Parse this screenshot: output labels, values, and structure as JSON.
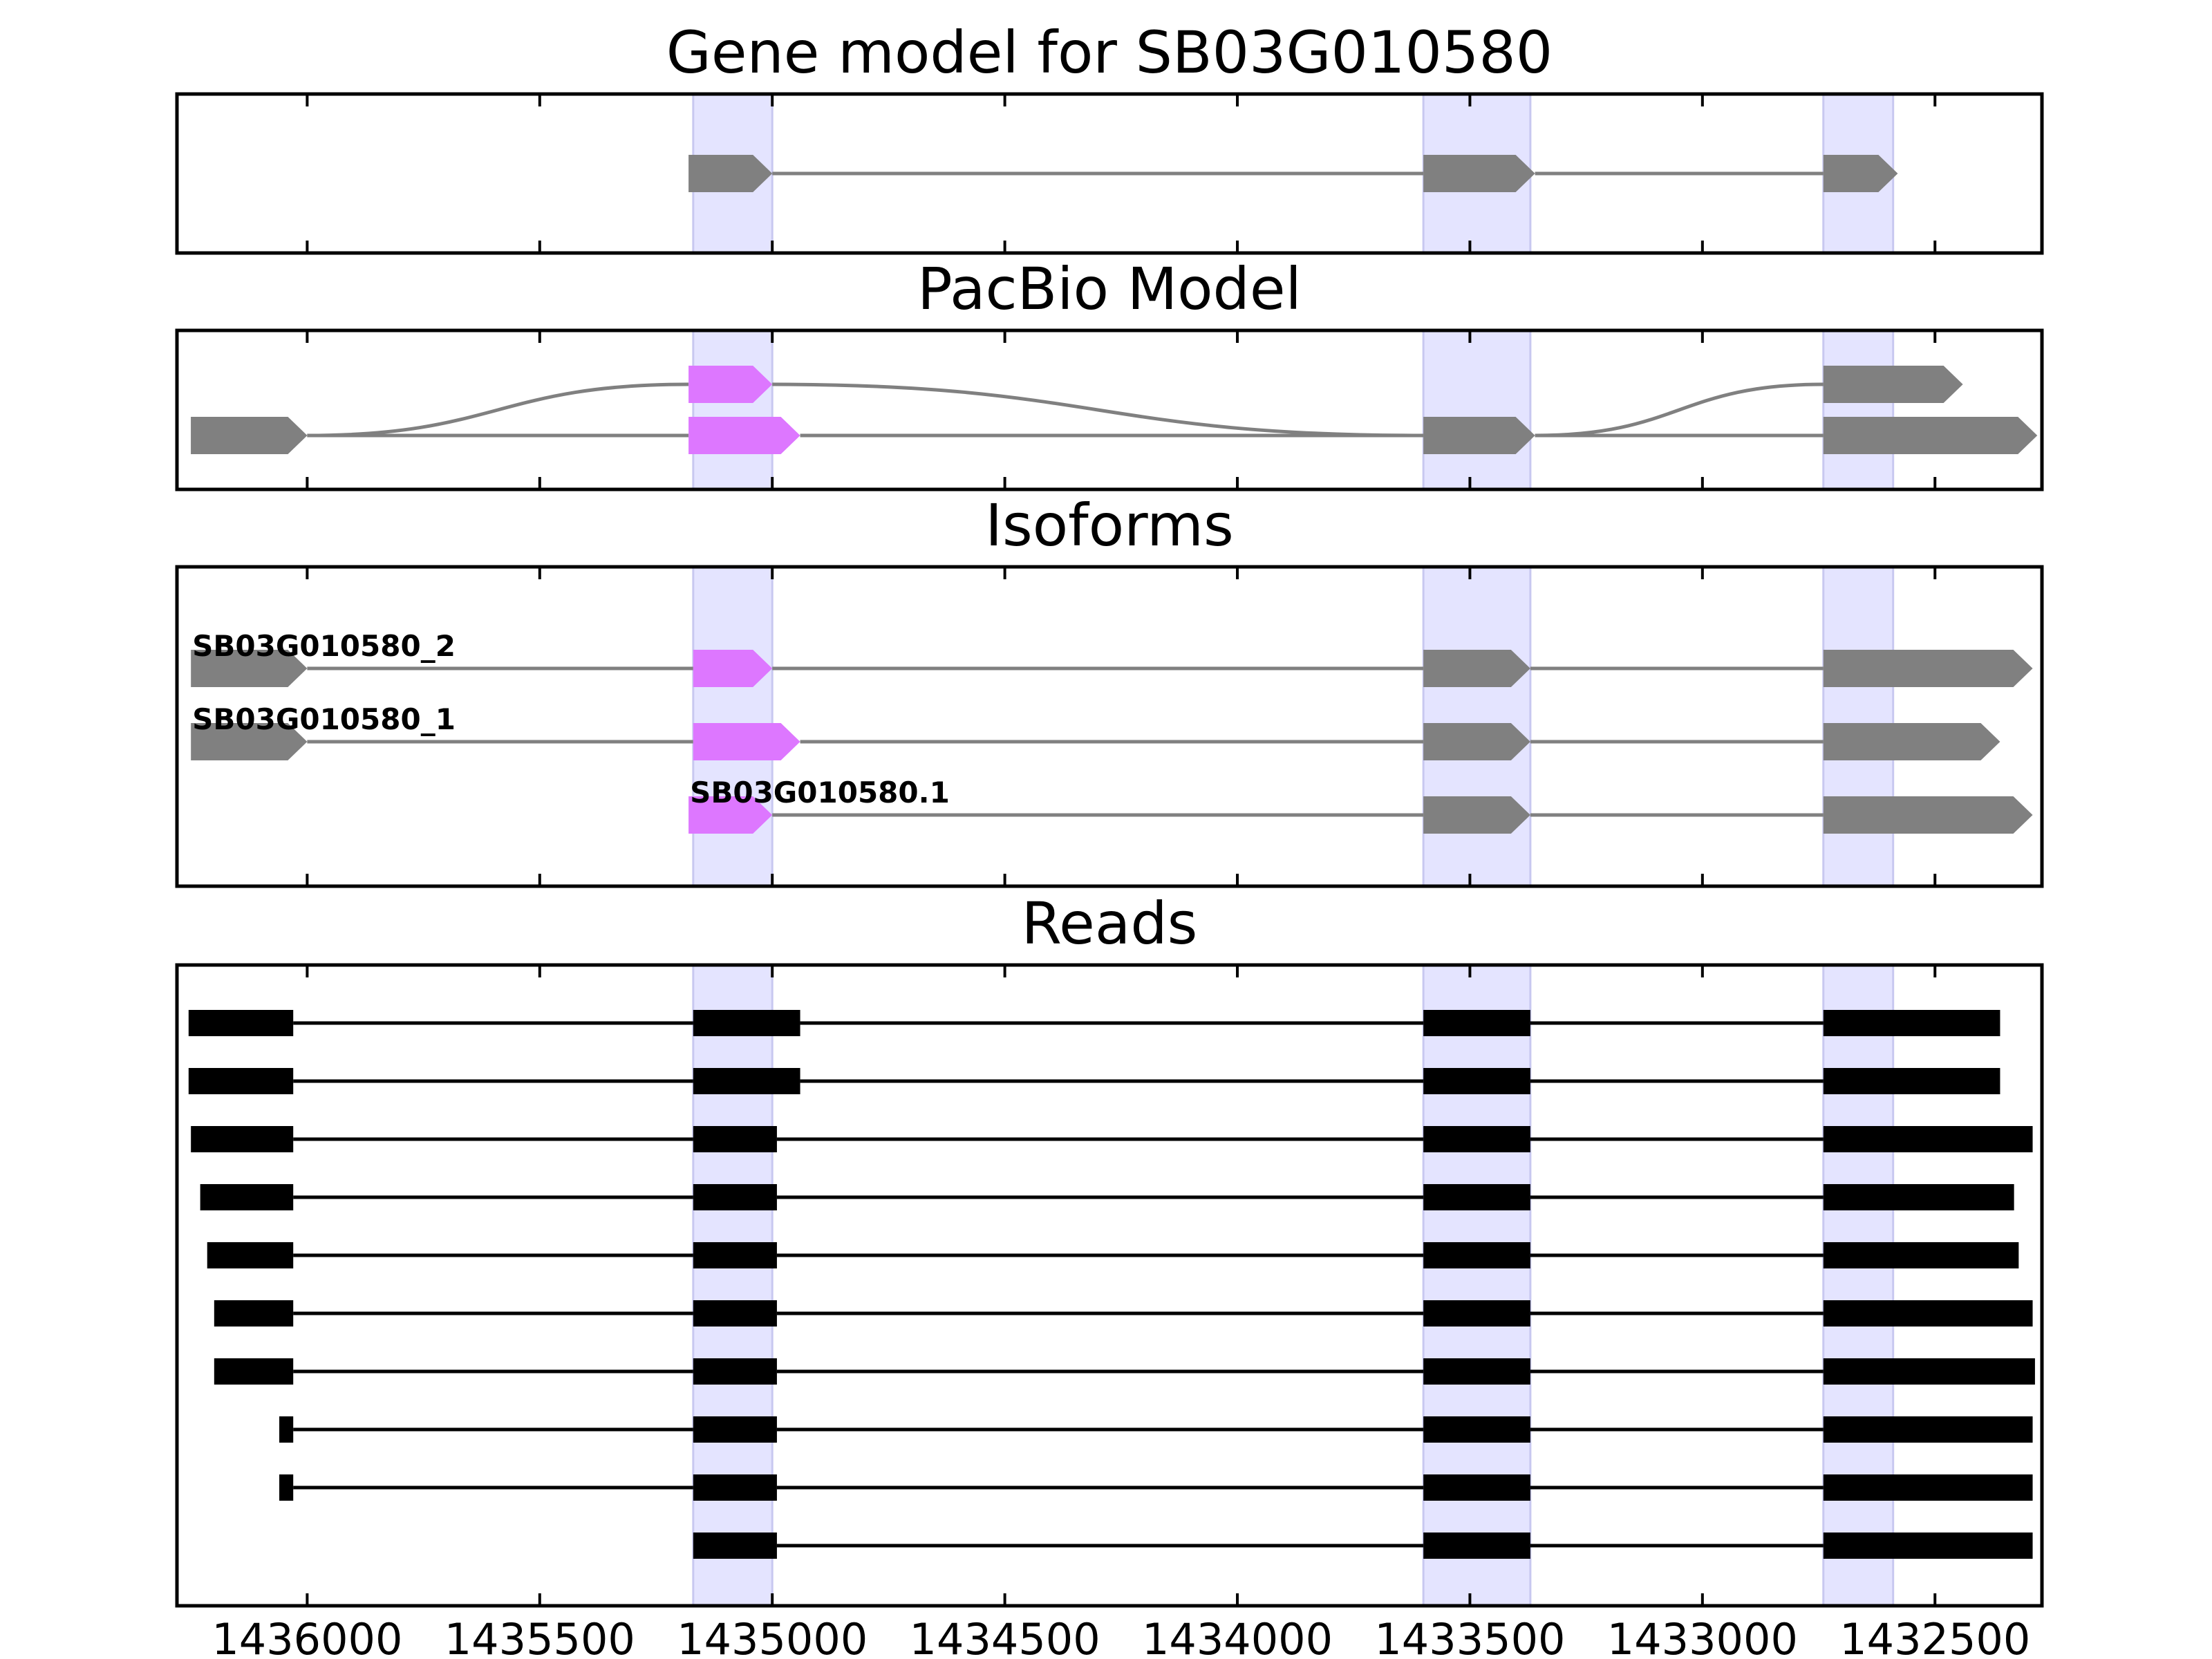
{
  "chart_data": {
    "type": "gene_model",
    "x_direction": "descending",
    "xlim": [
      1436280,
      1432270
    ],
    "xticks": [
      1436000,
      1435500,
      1435000,
      1434500,
      1434000,
      1433500,
      1433000,
      1432500
    ],
    "xtick_labels": [
      "1436000",
      "1435500",
      "1435000",
      "1434500",
      "1434000",
      "1433500",
      "1433000",
      "1432500"
    ],
    "colors": {
      "exon": "#808080",
      "exon_highlight": "#dd77ff",
      "line": "#808080",
      "read": "#000000",
      "shade": "#e4e4ff",
      "shade_edge": "#c8c8f0"
    },
    "shaded_regions": [
      [
        1435170,
        1435000
      ],
      [
        1433600,
        1433370
      ],
      [
        1432740,
        1432590
      ]
    ],
    "panels": [
      {
        "title": "Gene model for SB03G010580",
        "tracks": [
          {
            "exons": [
              [
                1435180,
                1435000
              ],
              [
                1433600,
                1433360
              ],
              [
                1432740,
                1432580
              ]
            ],
            "highlight": [],
            "arrow": true,
            "style": "model"
          }
        ]
      },
      {
        "title": "PacBio Model",
        "tracks": [
          {
            "exons": [
              [
                1436250,
                1436000
              ],
              [
                1435180,
                1435000
              ],
              [
                1432740,
                1432440
              ]
            ],
            "highlight": [
              1
            ],
            "arrow": true,
            "style": "model",
            "curved": true,
            "lane": 0
          },
          {
            "exons": [
              [
                1436250,
                1436000
              ],
              [
                1435180,
                1434940
              ],
              [
                1433600,
                1433360
              ],
              [
                1432740,
                1432280
              ]
            ],
            "highlight": [
              1
            ],
            "arrow": true,
            "style": "model",
            "lane": 1
          }
        ]
      },
      {
        "title": "Isoforms",
        "tracks": [
          {
            "label": "SB03G010580_2",
            "exons": [
              [
                1436250,
                1436000
              ],
              [
                1435170,
                1435000
              ],
              [
                1433600,
                1433370
              ],
              [
                1432740,
                1432290
              ]
            ],
            "highlight": [
              1
            ],
            "arrow": true,
            "style": "model"
          },
          {
            "label": "SB03G010580_1",
            "exons": [
              [
                1436250,
                1436000
              ],
              [
                1435170,
                1434940
              ],
              [
                1433600,
                1433370
              ],
              [
                1432740,
                1432360
              ]
            ],
            "highlight": [
              1
            ],
            "arrow": true,
            "style": "model"
          },
          {
            "label": "SB03G010580.1",
            "exons": [
              [
                1435180,
                1435000
              ],
              [
                1433600,
                1433370
              ],
              [
                1432740,
                1432290
              ]
            ],
            "highlight": [
              0
            ],
            "arrow": true,
            "style": "model"
          }
        ]
      },
      {
        "title": "Reads",
        "tracks": [
          {
            "exons": [
              [
                1436255,
                1436030
              ],
              [
                1435170,
                1434940
              ],
              [
                1433600,
                1433370
              ],
              [
                1432740,
                1432360
              ]
            ],
            "style": "read"
          },
          {
            "exons": [
              [
                1436255,
                1436030
              ],
              [
                1435170,
                1434940
              ],
              [
                1433600,
                1433370
              ],
              [
                1432740,
                1432360
              ]
            ],
            "style": "read"
          },
          {
            "exons": [
              [
                1436250,
                1436030
              ],
              [
                1435170,
                1434990
              ],
              [
                1433600,
                1433370
              ],
              [
                1432740,
                1432290
              ]
            ],
            "style": "read"
          },
          {
            "exons": [
              [
                1436230,
                1436030
              ],
              [
                1435170,
                1434990
              ],
              [
                1433600,
                1433370
              ],
              [
                1432740,
                1432330
              ]
            ],
            "style": "read"
          },
          {
            "exons": [
              [
                1436215,
                1436030
              ],
              [
                1435170,
                1434990
              ],
              [
                1433600,
                1433370
              ],
              [
                1432740,
                1432320
              ]
            ],
            "style": "read"
          },
          {
            "exons": [
              [
                1436200,
                1436030
              ],
              [
                1435170,
                1434990
              ],
              [
                1433600,
                1433370
              ],
              [
                1432740,
                1432290
              ]
            ],
            "style": "read"
          },
          {
            "exons": [
              [
                1436200,
                1436030
              ],
              [
                1435170,
                1434990
              ],
              [
                1433600,
                1433370
              ],
              [
                1432740,
                1432285
              ]
            ],
            "style": "read"
          },
          {
            "exons": [
              [
                1436060,
                1436030
              ],
              [
                1435170,
                1434990
              ],
              [
                1433600,
                1433370
              ],
              [
                1432740,
                1432290
              ]
            ],
            "style": "read"
          },
          {
            "exons": [
              [
                1436060,
                1436030
              ],
              [
                1435170,
                1434990
              ],
              [
                1433600,
                1433370
              ],
              [
                1432740,
                1432290
              ]
            ],
            "style": "read"
          },
          {
            "exons": [
              [
                1435170,
                1434990
              ],
              [
                1433600,
                1433370
              ],
              [
                1432740,
                1432290
              ]
            ],
            "style": "read"
          }
        ]
      }
    ]
  }
}
